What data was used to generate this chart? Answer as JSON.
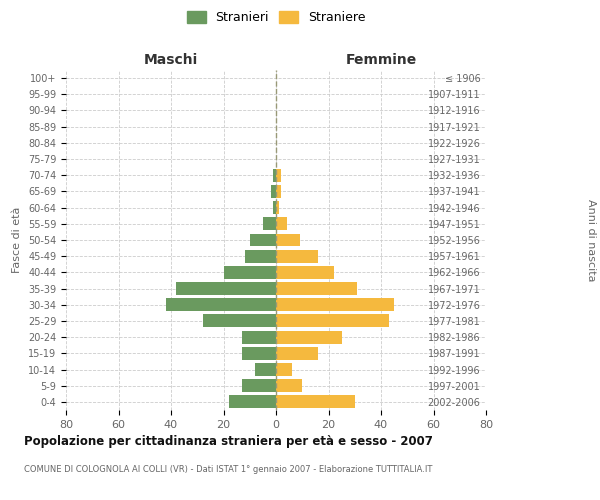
{
  "age_groups": [
    "0-4",
    "5-9",
    "10-14",
    "15-19",
    "20-24",
    "25-29",
    "30-34",
    "35-39",
    "40-44",
    "45-49",
    "50-54",
    "55-59",
    "60-64",
    "65-69",
    "70-74",
    "75-79",
    "80-84",
    "85-89",
    "90-94",
    "95-99",
    "100+"
  ],
  "birth_years": [
    "2002-2006",
    "1997-2001",
    "1992-1996",
    "1987-1991",
    "1982-1986",
    "1977-1981",
    "1972-1976",
    "1967-1971",
    "1962-1966",
    "1957-1961",
    "1952-1956",
    "1947-1951",
    "1942-1946",
    "1937-1941",
    "1932-1936",
    "1927-1931",
    "1922-1926",
    "1917-1921",
    "1912-1916",
    "1907-1911",
    "≤ 1906"
  ],
  "maschi": [
    18,
    13,
    8,
    13,
    13,
    28,
    42,
    38,
    20,
    12,
    10,
    5,
    1,
    2,
    1,
    0,
    0,
    0,
    0,
    0,
    0
  ],
  "femmine": [
    30,
    10,
    6,
    16,
    25,
    43,
    45,
    31,
    22,
    16,
    9,
    4,
    1,
    2,
    2,
    0,
    0,
    0,
    0,
    0,
    0
  ],
  "maschi_color": "#6a9a5f",
  "femmine_color": "#f5b93e",
  "title": "Popolazione per cittadinanza straniera per età e sesso - 2007",
  "subtitle": "COMUNE DI COLOGNOLA AI COLLI (VR) - Dati ISTAT 1° gennaio 2007 - Elaborazione TUTTITALIA.IT",
  "xlabel_left": "Maschi",
  "xlabel_right": "Femmine",
  "ylabel_left": "Fasce di età",
  "ylabel_right": "Anni di nascita",
  "legend_maschi": "Stranieri",
  "legend_femmine": "Straniere",
  "xlim": 80,
  "background_color": "#ffffff",
  "grid_color": "#cccccc"
}
